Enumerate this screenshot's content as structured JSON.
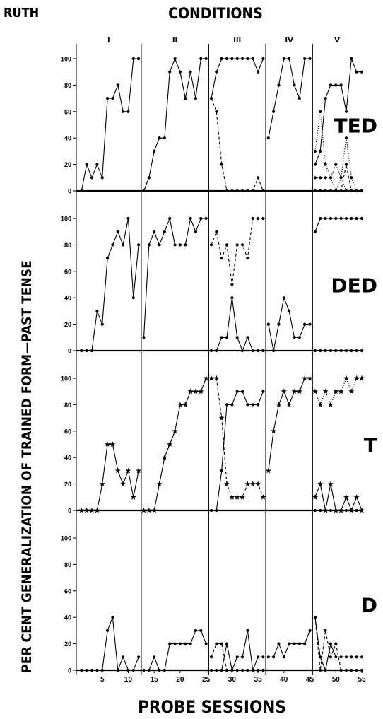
{
  "subject_label": "RUTH",
  "conditions_title": "CONDITIONS",
  "xlabel": "PROBE SESSIONS",
  "ylabel": "PER CENT GENERALIZATION OF TRAINED FORM—PAST TENSE",
  "condition_labels": [
    "I",
    "II",
    "III",
    "IV",
    "V"
  ],
  "x_ticks": [
    "5",
    "10",
    "15",
    "20",
    "25",
    "30",
    "35",
    "40",
    "45",
    "50",
    "55"
  ],
  "y_ticks": [
    "0",
    "20",
    "40",
    "60",
    "80",
    "100"
  ],
  "chart_data": {
    "type": "line",
    "xlim": [
      0,
      55
    ],
    "ylim": [
      0,
      100
    ],
    "condition_boundaries": [
      12.5,
      25.5,
      36.5,
      45.5
    ],
    "panels": [
      {
        "label": "TED",
        "series": [
          {
            "x": [
              1,
              2,
              3,
              4,
              5,
              6,
              7,
              8,
              9,
              10,
              11,
              12
            ],
            "y": [
              0,
              20,
              10,
              20,
              10,
              70,
              70,
              80,
              60,
              60,
              100,
              100
            ],
            "style": "solid",
            "marker": "dot"
          },
          {
            "x": [
              13,
              14,
              15,
              16,
              17,
              18,
              19,
              20,
              21,
              22,
              23,
              24,
              25
            ],
            "y": [
              0,
              10,
              30,
              40,
              40,
              90,
              100,
              90,
              70,
              90,
              70,
              100,
              100
            ],
            "style": "solid",
            "marker": "dot"
          },
          {
            "x": [
              26,
              27,
              28,
              29,
              30,
              31,
              32,
              33,
              34,
              35,
              36
            ],
            "y": [
              70,
              90,
              100,
              100,
              100,
              100,
              100,
              100,
              100,
              90,
              100
            ],
            "style": "solid",
            "marker": "dot"
          },
          {
            "x": [
              26,
              27,
              28,
              29,
              30,
              31,
              32,
              33,
              34,
              35,
              36
            ],
            "y": [
              70,
              60,
              20,
              0,
              0,
              0,
              0,
              0,
              0,
              10,
              0
            ],
            "style": "dashed",
            "marker": "dot"
          },
          {
            "x": [
              37,
              38,
              39,
              40,
              41,
              42,
              43,
              44,
              45
            ],
            "y": [
              40,
              60,
              80,
              100,
              100,
              80,
              70,
              100,
              100
            ],
            "style": "solid",
            "marker": "dot"
          },
          {
            "x": [
              46,
              47,
              48,
              49,
              50,
              51,
              52,
              53,
              54,
              55
            ],
            "y": [
              20,
              30,
              70,
              80,
              80,
              80,
              60,
              100,
              90,
              90
            ],
            "style": "solid",
            "marker": "dot"
          },
          {
            "x": [
              46,
              47,
              48,
              49,
              50,
              51,
              52,
              53,
              54,
              55
            ],
            "y": [
              30,
              60,
              20,
              10,
              20,
              10,
              0,
              0,
              0,
              0
            ],
            "style": "dotted",
            "marker": "dot"
          },
          {
            "x": [
              46,
              47,
              48,
              49,
              50,
              51,
              52,
              53,
              54,
              55
            ],
            "y": [
              10,
              10,
              10,
              10,
              0,
              10,
              40,
              10,
              0,
              0
            ],
            "style": "dotted",
            "marker": "dot"
          },
          {
            "x": [
              46,
              47,
              48,
              49,
              50,
              51,
              52,
              53,
              54,
              55
            ],
            "y": [
              0,
              0,
              0,
              0,
              0,
              0,
              20,
              0,
              0,
              0
            ],
            "style": "dashed",
            "marker": "dot"
          }
        ]
      },
      {
        "label": "DED",
        "series": [
          {
            "x": [
              1,
              2,
              3,
              4,
              5,
              6,
              7,
              8,
              9,
              10,
              11,
              12
            ],
            "y": [
              0,
              0,
              0,
              30,
              20,
              70,
              80,
              90,
              80,
              100,
              40,
              80
            ],
            "style": "solid",
            "marker": "dot"
          },
          {
            "x": [
              13,
              14,
              15,
              16,
              17,
              18,
              19,
              20,
              21,
              22,
              23,
              24,
              25
            ],
            "y": [
              10,
              80,
              90,
              80,
              90,
              100,
              80,
              80,
              80,
              100,
              90,
              100,
              100
            ],
            "style": "solid",
            "marker": "dot"
          },
          {
            "x": [
              26,
              27,
              28,
              29,
              30,
              31,
              32,
              33,
              34,
              35,
              36
            ],
            "y": [
              80,
              90,
              70,
              80,
              50,
              80,
              80,
              70,
              100,
              100,
              100
            ],
            "style": "dashed",
            "marker": "dot"
          },
          {
            "x": [
              26,
              27,
              28,
              29,
              30,
              31,
              32,
              33,
              34,
              35,
              36
            ],
            "y": [
              0,
              0,
              10,
              10,
              40,
              10,
              0,
              10,
              0,
              0,
              0
            ],
            "style": "solid",
            "marker": "dot"
          },
          {
            "x": [
              37,
              38,
              39,
              40,
              41,
              42,
              43,
              44,
              45
            ],
            "y": [
              20,
              0,
              20,
              40,
              30,
              10,
              10,
              20,
              20
            ],
            "style": "solid",
            "marker": "dot"
          },
          {
            "x": [
              46,
              47,
              48,
              49,
              50,
              51,
              52,
              53,
              54,
              55
            ],
            "y": [
              90,
              100,
              100,
              100,
              100,
              100,
              100,
              100,
              100,
              100
            ],
            "style": "solid",
            "marker": "dot"
          },
          {
            "x": [
              46,
              47,
              48,
              49,
              50,
              51,
              52,
              53,
              54,
              55
            ],
            "y": [
              0,
              0,
              0,
              0,
              0,
              0,
              0,
              0,
              0,
              0
            ],
            "style": "solid",
            "marker": "dot"
          }
        ]
      },
      {
        "label": "T",
        "series": [
          {
            "x": [
              1,
              2,
              3,
              4,
              5,
              6,
              7,
              8,
              9,
              10,
              11,
              12
            ],
            "y": [
              0,
              0,
              0,
              0,
              20,
              50,
              50,
              30,
              20,
              30,
              10,
              30
            ],
            "style": "solid",
            "marker": "star"
          },
          {
            "x": [
              13,
              14,
              15,
              16,
              17,
              18,
              19,
              20,
              21,
              22,
              23,
              24,
              25
            ],
            "y": [
              0,
              0,
              0,
              20,
              40,
              50,
              60,
              80,
              80,
              90,
              90,
              90,
              100
            ],
            "style": "solid",
            "marker": "star"
          },
          {
            "x": [
              26,
              27,
              28,
              29,
              30,
              31,
              32,
              33,
              34,
              35,
              36
            ],
            "y": [
              100,
              100,
              70,
              20,
              10,
              10,
              10,
              20,
              20,
              20,
              10
            ],
            "style": "dashed",
            "marker": "star"
          },
          {
            "x": [
              26,
              27,
              28,
              29,
              30,
              31,
              32,
              33,
              34,
              35,
              36
            ],
            "y": [
              0,
              0,
              30,
              80,
              80,
              90,
              90,
              80,
              80,
              80,
              90
            ],
            "style": "solid",
            "marker": "dot"
          },
          {
            "x": [
              37,
              38,
              39,
              40,
              41,
              42,
              43,
              44,
              45
            ],
            "y": [
              30,
              60,
              80,
              90,
              80,
              90,
              90,
              100,
              100
            ],
            "style": "solid",
            "marker": "star"
          },
          {
            "x": [
              46,
              47,
              48,
              49,
              50,
              51,
              52,
              53,
              54,
              55
            ],
            "y": [
              90,
              80,
              90,
              80,
              90,
              90,
              100,
              90,
              100,
              100
            ],
            "style": "dotted",
            "marker": "star"
          },
          {
            "x": [
              46,
              47,
              48,
              49,
              50,
              51,
              52,
              53,
              54,
              55
            ],
            "y": [
              10,
              20,
              0,
              20,
              0,
              0,
              10,
              0,
              10,
              0
            ],
            "style": "solid",
            "marker": "star"
          },
          {
            "x": [
              46,
              47,
              48,
              49,
              50,
              51,
              52,
              53,
              54,
              55
            ],
            "y": [
              0,
              0,
              0,
              0,
              0,
              0,
              0,
              0,
              0,
              0
            ],
            "style": "solid",
            "marker": "dot"
          }
        ]
      },
      {
        "label": "D",
        "series": [
          {
            "x": [
              1,
              2,
              3,
              4,
              5,
              6,
              7,
              8,
              9,
              10,
              11,
              12
            ],
            "y": [
              0,
              0,
              0,
              0,
              0,
              30,
              40,
              0,
              10,
              0,
              0,
              10
            ],
            "style": "solid",
            "marker": "dot"
          },
          {
            "x": [
              13,
              14,
              15,
              16,
              17,
              18,
              19,
              20,
              21,
              22,
              23,
              24,
              25
            ],
            "y": [
              0,
              0,
              10,
              0,
              0,
              20,
              20,
              20,
              20,
              20,
              30,
              30,
              20
            ],
            "style": "solid",
            "marker": "dot"
          },
          {
            "x": [
              26,
              27,
              28,
              29,
              30,
              31,
              32,
              33,
              34,
              35,
              36
            ],
            "y": [
              10,
              20,
              20,
              0,
              0,
              0,
              0,
              0,
              0,
              0,
              0
            ],
            "style": "dashed",
            "marker": "dot"
          },
          {
            "x": [
              26,
              27,
              28,
              29,
              30,
              31,
              32,
              33,
              34,
              35,
              36
            ],
            "y": [
              0,
              0,
              0,
              20,
              0,
              10,
              10,
              30,
              0,
              10,
              10
            ],
            "style": "solid",
            "marker": "dot"
          },
          {
            "x": [
              37,
              38,
              39,
              40,
              41,
              42,
              43,
              44,
              45
            ],
            "y": [
              10,
              10,
              20,
              10,
              20,
              20,
              20,
              20,
              30
            ],
            "style": "solid",
            "marker": "dot"
          },
          {
            "x": [
              46,
              47,
              48,
              49,
              50,
              51,
              52,
              53,
              54,
              55
            ],
            "y": [
              40,
              0,
              30,
              10,
              20,
              0,
              0,
              0,
              0,
              0
            ],
            "style": "dashed",
            "marker": "dot"
          },
          {
            "x": [
              46,
              47,
              48,
              49,
              50,
              51,
              52,
              53,
              54,
              55
            ],
            "y": [
              40,
              10,
              0,
              20,
              10,
              10,
              10,
              10,
              10,
              10
            ],
            "style": "solid",
            "marker": "dot"
          }
        ]
      }
    ]
  }
}
